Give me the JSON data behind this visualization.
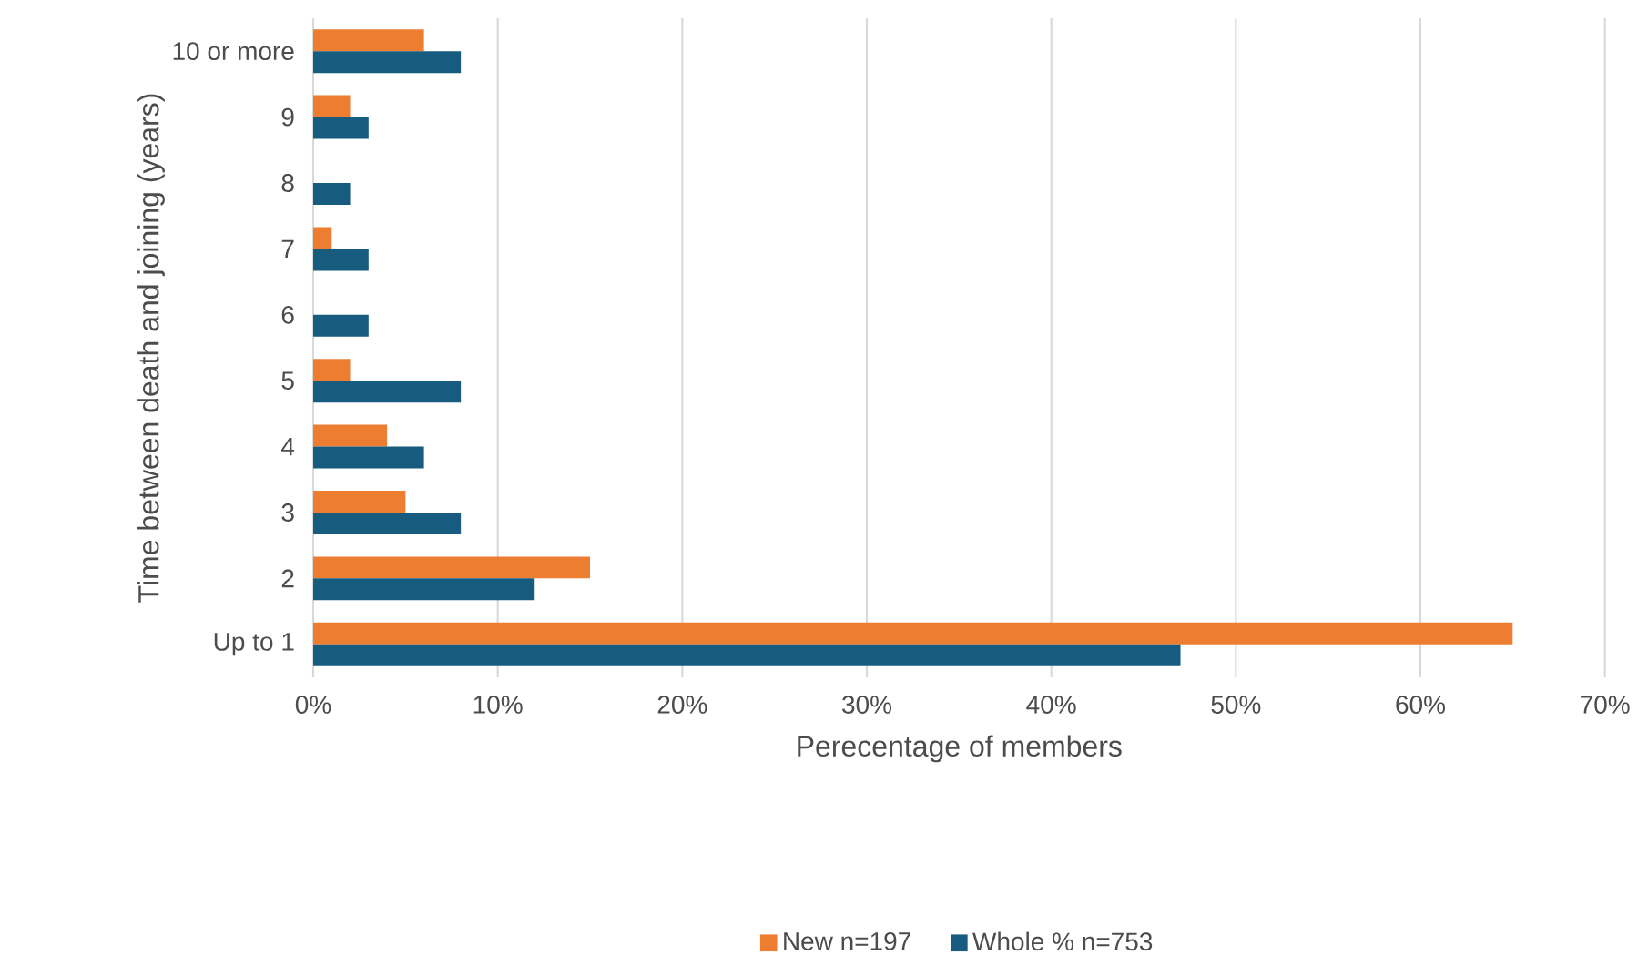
{
  "chart_data": {
    "type": "bar",
    "orientation": "horizontal",
    "xlabel": "Perecentage of members",
    "ylabel": "Time between death and joining (years)",
    "categories": [
      "10 or more",
      "9",
      "8",
      "7",
      "6",
      "5",
      "4",
      "3",
      "2",
      "Up to 1"
    ],
    "series": [
      {
        "name": "New n=197",
        "color": "#ed7d31",
        "values": [
          6,
          2,
          null,
          1,
          null,
          2,
          4,
          5,
          15,
          65
        ]
      },
      {
        "name": "Whole % n=753",
        "color": "#175c7e",
        "values": [
          8,
          3,
          2,
          3,
          3,
          8,
          6,
          8,
          12,
          47
        ]
      }
    ],
    "xlim": [
      0,
      70
    ],
    "xticks": [
      {
        "value": 0,
        "label": "0%"
      },
      {
        "value": 10,
        "label": "10%"
      },
      {
        "value": 20,
        "label": "20%"
      },
      {
        "value": 30,
        "label": "30%"
      },
      {
        "value": 40,
        "label": "40%"
      },
      {
        "value": 50,
        "label": "50%"
      },
      {
        "value": 60,
        "label": "60%"
      },
      {
        "value": 70,
        "label": "70%"
      }
    ],
    "grid": "x",
    "legend": "bottom"
  }
}
